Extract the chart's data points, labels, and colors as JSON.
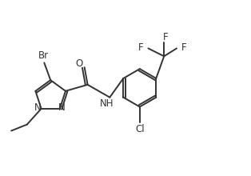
{
  "bg_color": "#ffffff",
  "line_color": "#333333",
  "line_width": 1.4,
  "font_size": 8.5,
  "figsize": [
    3.14,
    2.2
  ],
  "dpi": 100,
  "xlim": [
    0.0,
    3.14
  ],
  "ylim": [
    0.0,
    2.2
  ]
}
